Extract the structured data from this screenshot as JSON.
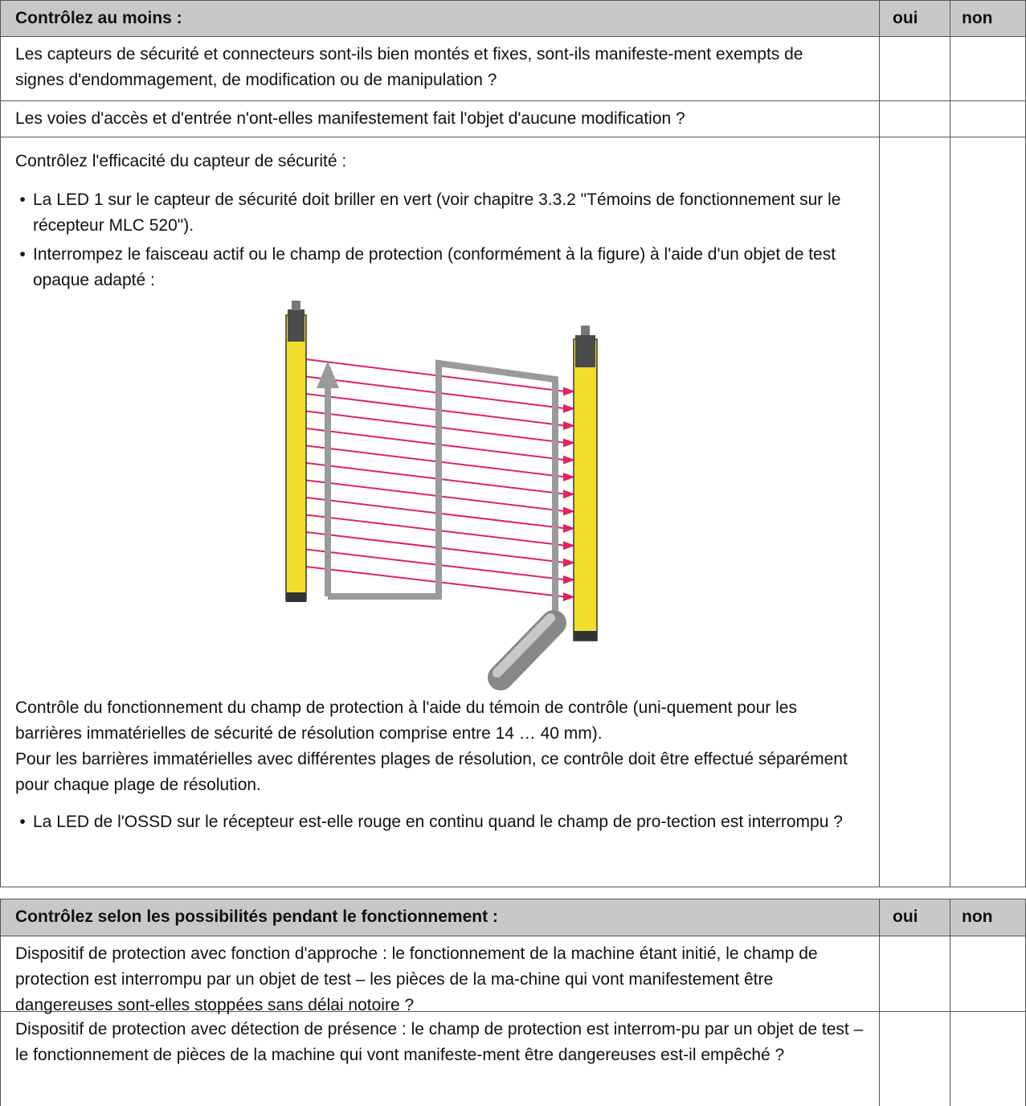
{
  "tables": [
    {
      "header": {
        "question": "Contrôlez au moins :",
        "yes": "oui",
        "no": "non"
      },
      "rows": [
        {
          "text": "Les capteurs de sécurité et connecteurs sont-ils bien montés et fixes, sont-ils manifeste-ment exempts de signes d'endommagement, de modification ou de manipulation ?"
        },
        {
          "text": "Les voies d'accès et d'entrée n'ont-elles manifestement fait l'objet d'aucune modification ?"
        },
        {
          "intro": "Contrôlez l'efficacité du capteur de sécurité :",
          "bullets": [
            "La LED 1 sur le capteur de sécurité doit briller en vert (voir chapitre 3.3.2 \"Témoins de fonctionnement sur le récepteur MLC 520\").",
            "Interrompez le faisceau actif ou le champ de protection (conformément à la figure) à l'aide d'un objet de test opaque adapté :"
          ],
          "paragraphs": [
            "Contrôle du fonctionnement du champ de protection à l'aide du témoin de contrôle (uni-quement pour les barrières immatérielles de sécurité de résolution comprise entre 14 … 40 mm).",
            "Pour les barrières immatérielles avec différentes plages de résolution, ce contrôle doit être effectué séparément pour chaque plage de résolution."
          ],
          "final_bullets": [
            "La LED de l'OSSD sur le récepteur est-elle rouge en continu quand le champ de pro-tection est interrompu ?"
          ]
        }
      ]
    },
    {
      "header": {
        "question": "Contrôlez selon les possibilités pendant le fonctionnement :",
        "yes": "oui",
        "no": "non"
      },
      "rows": [
        {
          "text": "Dispositif de protection avec fonction d'approche : le fonctionnement de la machine étant initié, le champ de protection est interrompu par un objet de test – les pièces de la ma-chine qui vont manifestement être dangereuses sont-elles stoppées sans délai notoire ?"
        },
        {
          "text": "Dispositif de protection avec détection de présence : le champ de protection est interrom-pu par un objet de test – le fonctionnement de pièces de la machine qui vont manifeste-ment être dangereuses est-il empêché ?"
        }
      ]
    }
  ]
}
